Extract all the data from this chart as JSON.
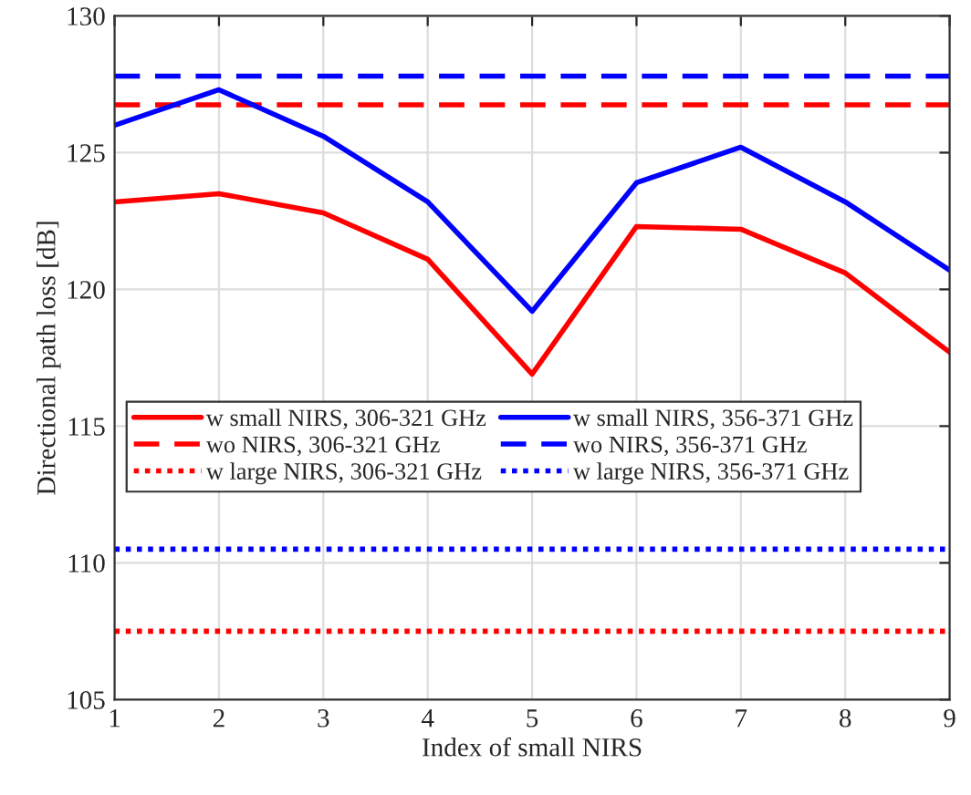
{
  "chart_data": {
    "type": "line",
    "xlabel": "Index of small NIRS",
    "ylabel": "Directional path loss [dB]",
    "x": [
      1,
      2,
      3,
      4,
      5,
      6,
      7,
      8,
      9
    ],
    "series": [
      {
        "name": "w small NIRS, 306-321 GHz",
        "color": "#ff0000",
        "line_style": "solid",
        "values": [
          123.2,
          123.5,
          122.8,
          121.1,
          116.9,
          122.3,
          122.2,
          120.6,
          117.7
        ]
      },
      {
        "name": "wo NIRS, 306-321 GHz",
        "color": "#ff0000",
        "line_style": "dashed",
        "values": [
          126.75,
          126.75,
          126.75,
          126.75,
          126.75,
          126.75,
          126.75,
          126.75,
          126.75
        ]
      },
      {
        "name": "w large NIRS, 306-321 GHz",
        "color": "#ff0000",
        "line_style": "dotted",
        "values": [
          107.5,
          107.5,
          107.5,
          107.5,
          107.5,
          107.5,
          107.5,
          107.5,
          107.5
        ]
      },
      {
        "name": "w small NIRS, 356-371 GHz",
        "color": "#0000ff",
        "line_style": "solid",
        "values": [
          126.0,
          127.3,
          125.6,
          123.2,
          119.2,
          123.9,
          125.2,
          123.2,
          120.7
        ]
      },
      {
        "name": "wo NIRS, 356-371 GHz",
        "color": "#0000ff",
        "line_style": "dashed",
        "values": [
          127.8,
          127.8,
          127.8,
          127.8,
          127.8,
          127.8,
          127.8,
          127.8,
          127.8
        ]
      },
      {
        "name": "w large NIRS, 356-371 GHz",
        "color": "#0000ff",
        "line_style": "dotted",
        "values": [
          110.5,
          110.5,
          110.5,
          110.5,
          110.5,
          110.5,
          110.5,
          110.5,
          110.5
        ]
      }
    ],
    "xlim": [
      1,
      9
    ],
    "xticks": [
      1,
      2,
      3,
      4,
      5,
      6,
      7,
      8,
      9
    ],
    "ylim": [
      105,
      130
    ],
    "yticks": [
      105,
      110,
      115,
      120,
      125,
      130
    ],
    "grid": true,
    "legend": "center left",
    "marker": "none"
  }
}
